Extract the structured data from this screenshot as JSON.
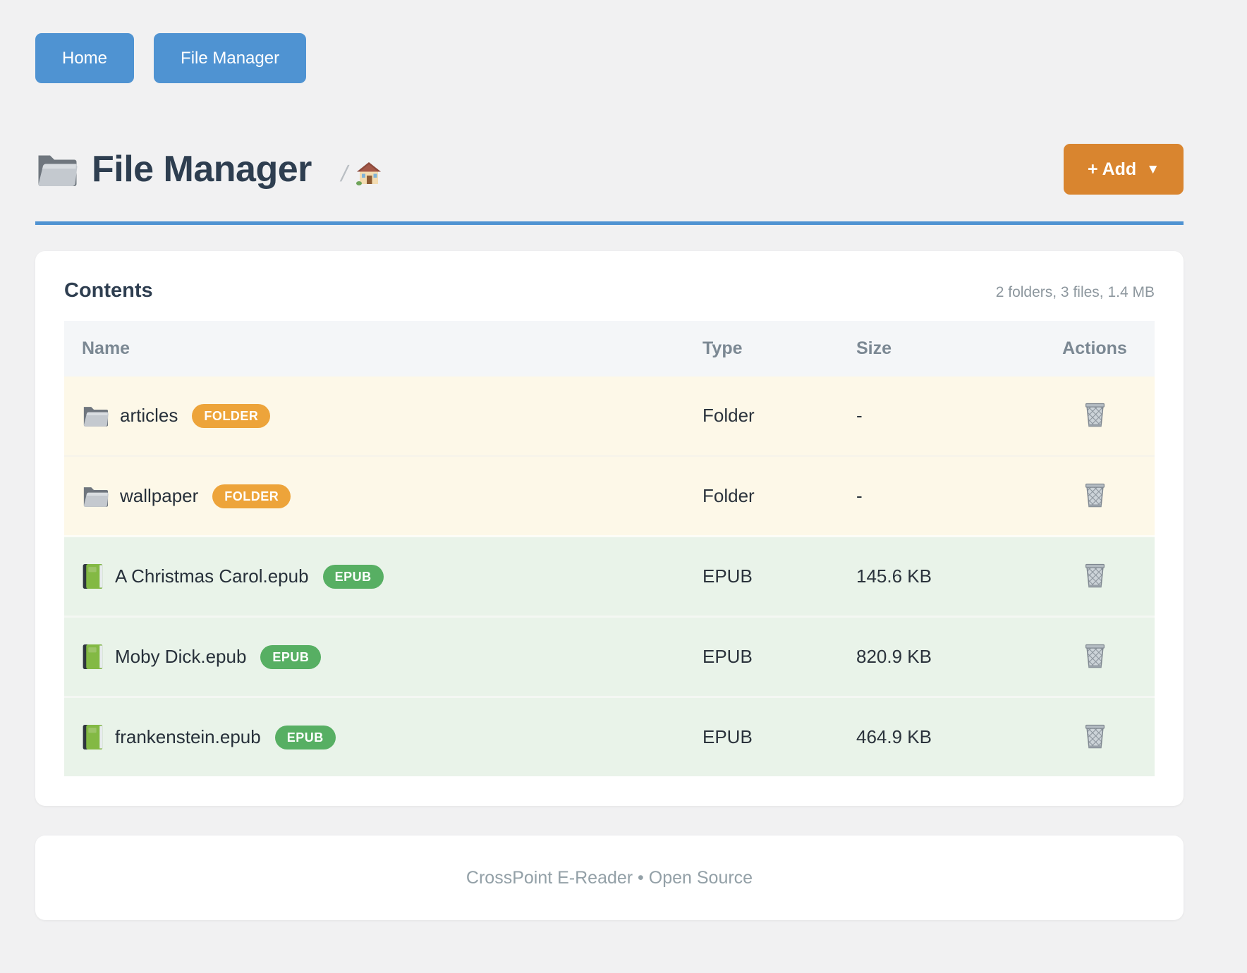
{
  "nav": {
    "buttons": [
      {
        "label": "Home"
      },
      {
        "label": "File Manager"
      }
    ]
  },
  "header": {
    "title": "File Manager",
    "breadcrumb_separator": "/",
    "add_button": {
      "label": "+ Add",
      "caret": "▼"
    }
  },
  "contents": {
    "heading": "Contents",
    "summary": "2 folders, 3 files, 1.4 MB",
    "table": {
      "columns": [
        "Name",
        "Type",
        "Size",
        "Actions"
      ],
      "rows": [
        {
          "name": "articles",
          "kind": "folder",
          "badge": "FOLDER",
          "type": "Folder",
          "size": "-"
        },
        {
          "name": "wallpaper",
          "kind": "folder",
          "badge": "FOLDER",
          "type": "Folder",
          "size": "-"
        },
        {
          "name": "A Christmas Carol.epub",
          "kind": "epub",
          "badge": "EPUB",
          "type": "EPUB",
          "size": "145.6 KB"
        },
        {
          "name": "Moby Dick.epub",
          "kind": "epub",
          "badge": "EPUB",
          "type": "EPUB",
          "size": "820.9 KB"
        },
        {
          "name": "frankenstein.epub",
          "kind": "epub",
          "badge": "EPUB",
          "type": "EPUB",
          "size": "464.9 KB"
        }
      ]
    }
  },
  "footer": {
    "text": "CrossPoint E-Reader • Open Source"
  },
  "icons": {
    "title_icon": "folder-icon",
    "breadcrumb_icon": "house-icon",
    "folder_row_icon": "folder-icon",
    "epub_row_icon": "green-book-icon",
    "action_icon": "wastebasket-icon"
  },
  "colors": {
    "page_background": "#f1f1f2",
    "nav_button_blue": "#4f93d2",
    "title_rule_blue": "#4f93d2",
    "add_button_orange": "#d9852f",
    "folder_badge_orange": "#eda43a",
    "epub_badge_green": "#57af63",
    "folder_row_background": "#fdf8e8",
    "epub_row_background": "#e9f3e9",
    "table_header_background": "#f4f6f8",
    "heading_text": "#2e3e50",
    "muted_text": "#8d979e"
  }
}
